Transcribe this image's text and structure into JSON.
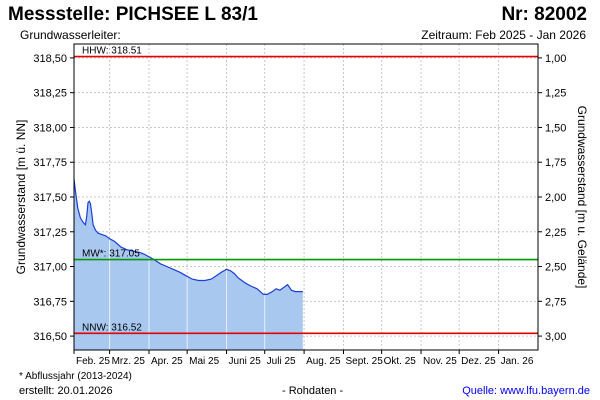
{
  "header": {
    "title": "Messstelle: PICHSEE L 83/1",
    "nr": "Nr: 82002",
    "subtitle": "Grundwasserleiter:",
    "zeitraum": "Zeitraum: Feb 2025 - Jan 2026"
  },
  "footer": {
    "footnote": "* Abflussjahr (2013-2024)",
    "erstellt": "erstellt:  20.01.2026",
    "rohdaten": "- Rohdaten -",
    "quelle": "Quelle: www.lfu.bayern.de"
  },
  "colors": {
    "area_fill": "#a9c8f0",
    "line": "#1a3fd6",
    "hhw_line": "#e00000",
    "nnw_line": "#e00000",
    "mw_line": "#009900",
    "link": "#0000ff"
  },
  "chart_data": {
    "type": "area",
    "ylabel": "Grundwasserstand [m ü. NN]",
    "ylabel_right": "Grundwasserstand [m u. Gelände]",
    "ylim": [
      316.4,
      318.6
    ],
    "yticks": [
      316.5,
      316.75,
      317.0,
      317.25,
      317.5,
      317.75,
      318.0,
      318.25,
      318.5
    ],
    "ytick_labels": [
      "316,50",
      "316,75",
      "317,00",
      "317,25",
      "317,50",
      "317,75",
      "318,00",
      "318,25",
      "318,50"
    ],
    "y2_ticks": [
      1.0,
      1.25,
      1.5,
      1.75,
      2.0,
      2.25,
      2.5,
      2.75,
      3.0
    ],
    "y2_tick_labels": [
      "1,00",
      "1,25",
      "1,50",
      "1,75",
      "2,00",
      "2,25",
      "2,50",
      "2,75",
      "3,00"
    ],
    "y2_offset": 319.5,
    "xlim": [
      "2025-02-01",
      "2026-02-01"
    ],
    "x_ticks": [
      "2025-02-01",
      "2025-03-01",
      "2025-04-01",
      "2025-05-01",
      "2025-06-01",
      "2025-07-01",
      "2025-08-01",
      "2025-09-01",
      "2025-10-01",
      "2025-11-01",
      "2025-12-01",
      "2026-01-01"
    ],
    "x_tick_labels": [
      "Feb. 25",
      "Mrz. 25",
      "Apr. 25",
      "Mai 25",
      "Juni 25",
      "Juli 25",
      "Aug. 25",
      "Sept. 25",
      "Okt. 25",
      "Nov. 25",
      "Dez. 25",
      "Jan. 26"
    ],
    "grid": true,
    "reference_lines": [
      {
        "label": "HHW: 318.51",
        "value": 318.51,
        "key": "hhw"
      },
      {
        "label": "MW*: 317.05",
        "value": 317.05,
        "key": "mw"
      },
      {
        "label": "NNW: 316.52",
        "value": 316.52,
        "key": "nnw"
      }
    ],
    "series": [
      {
        "x": [
          "2025-02-01",
          "2025-02-02",
          "2025-02-04",
          "2025-02-06",
          "2025-02-08",
          "2025-02-10",
          "2025-02-11",
          "2025-02-12",
          "2025-02-13",
          "2025-02-14",
          "2025-02-15",
          "2025-02-16",
          "2025-02-18",
          "2025-02-20",
          "2025-02-23",
          "2025-02-26",
          "2025-03-01",
          "2025-03-05",
          "2025-03-10",
          "2025-03-15",
          "2025-03-20",
          "2025-03-25",
          "2025-03-28",
          "2025-04-01",
          "2025-04-05",
          "2025-04-10",
          "2025-04-15",
          "2025-04-20",
          "2025-04-25",
          "2025-05-01",
          "2025-05-05",
          "2025-05-10",
          "2025-05-15",
          "2025-05-20",
          "2025-05-25",
          "2025-05-28",
          "2025-06-01",
          "2025-06-04",
          "2025-06-07",
          "2025-06-10",
          "2025-06-13",
          "2025-06-16",
          "2025-06-20",
          "2025-06-25",
          "2025-06-30",
          "2025-07-03",
          "2025-07-07",
          "2025-07-10",
          "2025-07-13",
          "2025-07-16",
          "2025-07-19",
          "2025-07-22",
          "2025-07-25",
          "2025-07-28",
          "2025-07-31"
        ],
        "values": [
          317.63,
          317.55,
          317.42,
          317.35,
          317.32,
          317.3,
          317.36,
          317.46,
          317.47,
          317.45,
          317.38,
          317.3,
          317.26,
          317.24,
          317.23,
          317.22,
          317.2,
          317.18,
          317.14,
          317.12,
          317.11,
          317.1,
          317.09,
          317.07,
          317.05,
          317.02,
          317.0,
          316.98,
          316.96,
          316.93,
          316.91,
          316.9,
          316.9,
          316.91,
          316.94,
          316.96,
          316.98,
          316.97,
          316.95,
          316.92,
          316.9,
          316.88,
          316.86,
          316.84,
          316.8,
          316.8,
          316.82,
          316.84,
          316.83,
          316.85,
          316.87,
          316.83,
          316.82,
          316.82,
          316.82
        ]
      }
    ]
  }
}
